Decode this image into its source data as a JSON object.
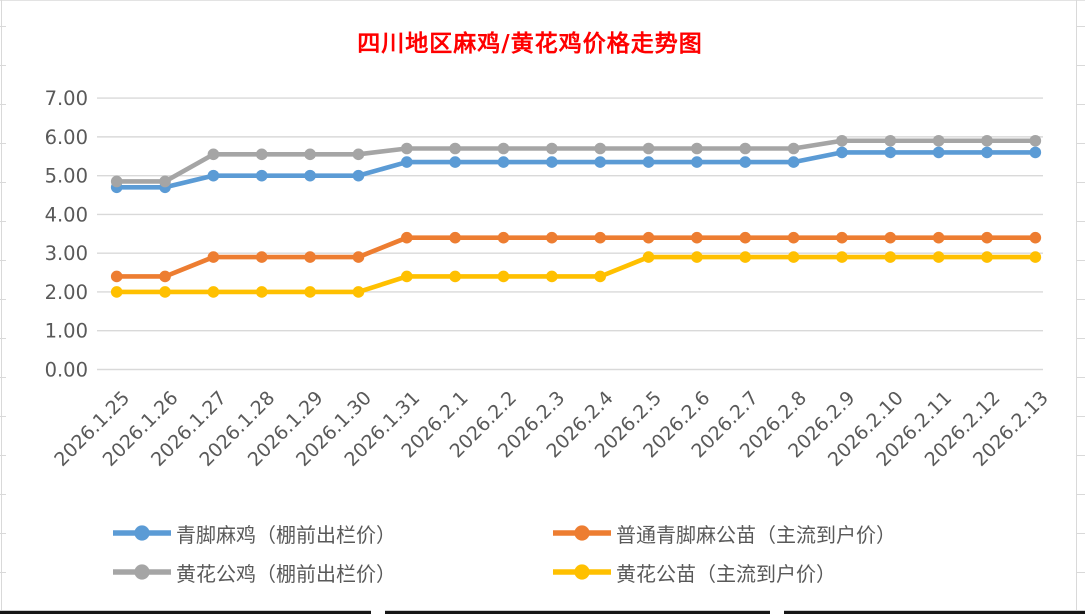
{
  "title": {
    "text": "四川地区麻鸡/黄花鸡价格走势图",
    "color": "#FF0000"
  },
  "chart_data": {
    "type": "line",
    "title": "四川地区麻鸡/黄花鸡价格走势图",
    "xlabel": "",
    "ylabel": "",
    "categories": [
      "2026.1.25",
      "2026.1.26",
      "2026.1.27",
      "2026.1.28",
      "2026.1.29",
      "2026.1.30",
      "2026.1.31",
      "2026.2.1",
      "2026.2.2",
      "2026.2.3",
      "2026.2.4",
      "2026.2.5",
      "2026.2.6",
      "2026.2.7",
      "2026.2.8",
      "2026.2.9",
      "2026.2.10",
      "2026.2.11",
      "2026.2.12",
      "2026.2.13"
    ],
    "series": [
      {
        "name": "青脚麻鸡（棚前出栏价）",
        "color": "#5B9BD5",
        "values": [
          4.7,
          4.7,
          5.0,
          5.0,
          5.0,
          5.0,
          5.35,
          5.35,
          5.35,
          5.35,
          5.35,
          5.35,
          5.35,
          5.35,
          5.35,
          5.6,
          5.6,
          5.6,
          5.6,
          5.6
        ]
      },
      {
        "name": "普通青脚麻公苗（主流到户价）",
        "color": "#ED7D31",
        "values": [
          2.4,
          2.4,
          2.9,
          2.9,
          2.9,
          2.9,
          3.4,
          3.4,
          3.4,
          3.4,
          3.4,
          3.4,
          3.4,
          3.4,
          3.4,
          3.4,
          3.4,
          3.4,
          3.4,
          3.4
        ]
      },
      {
        "name": "黄花公鸡（棚前出栏价）",
        "color": "#A5A5A5",
        "values": [
          4.85,
          4.85,
          5.55,
          5.55,
          5.55,
          5.55,
          5.7,
          5.7,
          5.7,
          5.7,
          5.7,
          5.7,
          5.7,
          5.7,
          5.7,
          5.9,
          5.9,
          5.9,
          5.9,
          5.9
        ]
      },
      {
        "name": "黄花公苗（主流到户价）",
        "color": "#FFC000",
        "values": [
          2.0,
          2.0,
          2.0,
          2.0,
          2.0,
          2.0,
          2.4,
          2.4,
          2.4,
          2.4,
          2.4,
          2.9,
          2.9,
          2.9,
          2.9,
          2.9,
          2.9,
          2.9,
          2.9,
          2.9
        ]
      }
    ],
    "ylim": [
      0,
      7
    ],
    "ytick_labels": [
      "0.00",
      "1.00",
      "2.00",
      "3.00",
      "4.00",
      "5.00",
      "6.00",
      "7.00"
    ],
    "grid": true,
    "gridline_color": "#D9D9D9",
    "axis_label_color": "#595959",
    "legend_position": "bottom"
  }
}
